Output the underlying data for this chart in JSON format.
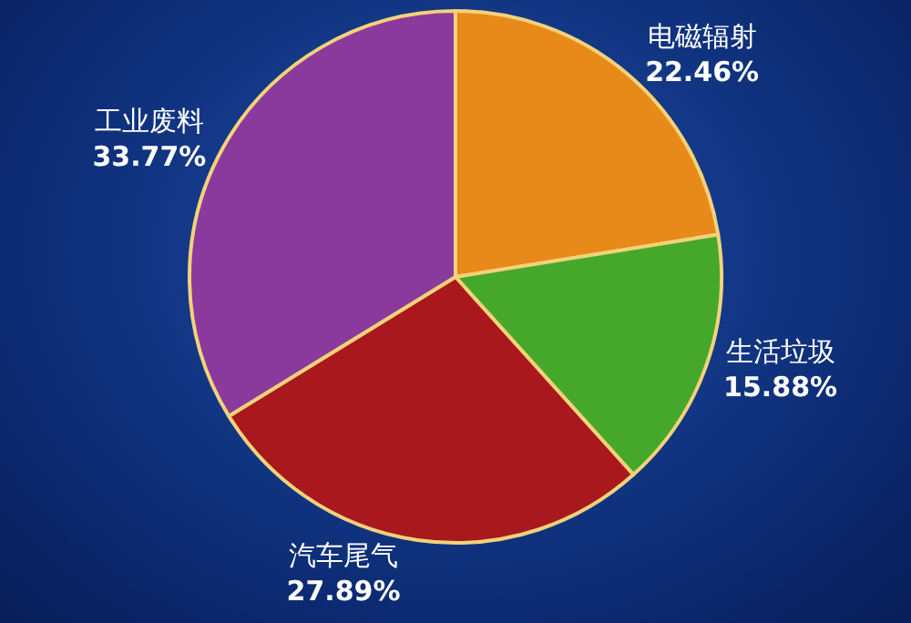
{
  "chart_data": {
    "type": "pie",
    "categories": [
      "电磁辐射",
      "生活垃圾",
      "汽车尾气",
      "工业废料"
    ],
    "values": [
      22.46,
      15.88,
      27.89,
      33.77
    ],
    "value_labels": [
      "22.46%",
      "15.88%",
      "27.89%",
      "33.77%"
    ],
    "colors": [
      "#e88a1a",
      "#46a82a",
      "#a8181c",
      "#8a3a9c"
    ],
    "legend": false
  }
}
